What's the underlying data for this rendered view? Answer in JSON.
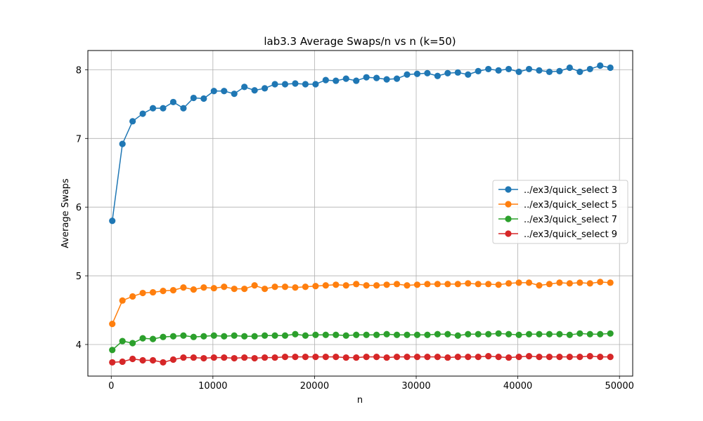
{
  "chart_data": {
    "type": "line",
    "title": "lab3.3 Average Swaps/n vs n (k=50)",
    "xlabel": "n",
    "ylabel": "Average Swaps",
    "xlim": [
      -2300,
      51300
    ],
    "ylim": [
      3.54,
      8.28
    ],
    "xticks": [
      0,
      10000,
      20000,
      30000,
      40000,
      50000
    ],
    "xtick_labels": [
      "0",
      "10000",
      "20000",
      "30000",
      "40000",
      "50000"
    ],
    "yticks": [
      4,
      5,
      6,
      7,
      8
    ],
    "ytick_labels": [
      "4",
      "5",
      "6",
      "7",
      "8"
    ],
    "grid": true,
    "legend_position": "center-right",
    "x": [
      100,
      1100,
      2100,
      3100,
      4100,
      5100,
      6100,
      7100,
      8100,
      9100,
      10100,
      11100,
      12100,
      13100,
      14100,
      15100,
      16100,
      17100,
      18100,
      19100,
      20100,
      21100,
      22100,
      23100,
      24100,
      25100,
      26100,
      27100,
      28100,
      29100,
      30100,
      31100,
      32100,
      33100,
      34100,
      35100,
      36100,
      37100,
      38100,
      39100,
      40100,
      41100,
      42100,
      43100,
      44100,
      45100,
      46100,
      47100,
      48100,
      49100
    ],
    "series": [
      {
        "name": "../ex3/quick_select 3",
        "color": "#1f77b4",
        "values": [
          5.8,
          6.92,
          7.25,
          7.36,
          7.44,
          7.44,
          7.53,
          7.44,
          7.59,
          7.58,
          7.69,
          7.69,
          7.65,
          7.75,
          7.7,
          7.73,
          7.79,
          7.79,
          7.8,
          7.79,
          7.79,
          7.85,
          7.84,
          7.87,
          7.84,
          7.89,
          7.88,
          7.86,
          7.87,
          7.93,
          7.94,
          7.95,
          7.91,
          7.95,
          7.96,
          7.93,
          7.98,
          8.01,
          7.99,
          8.01,
          7.97,
          8.01,
          7.99,
          7.97,
          7.98,
          8.03,
          7.97,
          8.01,
          8.06,
          8.03
        ]
      },
      {
        "name": "../ex3/quick_select 5",
        "color": "#ff7f0e",
        "values": [
          4.3,
          4.64,
          4.7,
          4.75,
          4.76,
          4.78,
          4.79,
          4.83,
          4.8,
          4.83,
          4.82,
          4.84,
          4.81,
          4.81,
          4.86,
          4.81,
          4.84,
          4.84,
          4.83,
          4.84,
          4.85,
          4.86,
          4.87,
          4.86,
          4.88,
          4.86,
          4.86,
          4.87,
          4.88,
          4.86,
          4.87,
          4.88,
          4.88,
          4.88,
          4.88,
          4.89,
          4.88,
          4.88,
          4.87,
          4.89,
          4.9,
          4.9,
          4.86,
          4.88,
          4.9,
          4.89,
          4.9,
          4.89,
          4.91,
          4.9
        ]
      },
      {
        "name": "../ex3/quick_select 7",
        "color": "#2ca02c",
        "values": [
          3.92,
          4.05,
          4.02,
          4.09,
          4.08,
          4.11,
          4.12,
          4.13,
          4.11,
          4.12,
          4.13,
          4.12,
          4.13,
          4.12,
          4.12,
          4.13,
          4.13,
          4.13,
          4.15,
          4.13,
          4.14,
          4.14,
          4.14,
          4.13,
          4.14,
          4.14,
          4.14,
          4.15,
          4.14,
          4.14,
          4.14,
          4.14,
          4.15,
          4.15,
          4.13,
          4.15,
          4.15,
          4.15,
          4.16,
          4.15,
          4.14,
          4.15,
          4.15,
          4.15,
          4.15,
          4.14,
          4.16,
          4.15,
          4.15,
          4.16
        ]
      },
      {
        "name": "../ex3/quick_select 9",
        "color": "#d62728",
        "values": [
          3.74,
          3.75,
          3.79,
          3.77,
          3.77,
          3.74,
          3.78,
          3.81,
          3.81,
          3.8,
          3.81,
          3.81,
          3.8,
          3.81,
          3.8,
          3.81,
          3.81,
          3.82,
          3.82,
          3.82,
          3.82,
          3.82,
          3.82,
          3.81,
          3.81,
          3.82,
          3.82,
          3.81,
          3.82,
          3.82,
          3.82,
          3.82,
          3.82,
          3.81,
          3.82,
          3.82,
          3.82,
          3.83,
          3.82,
          3.81,
          3.82,
          3.83,
          3.82,
          3.82,
          3.82,
          3.82,
          3.82,
          3.83,
          3.82,
          3.82
        ]
      }
    ]
  }
}
